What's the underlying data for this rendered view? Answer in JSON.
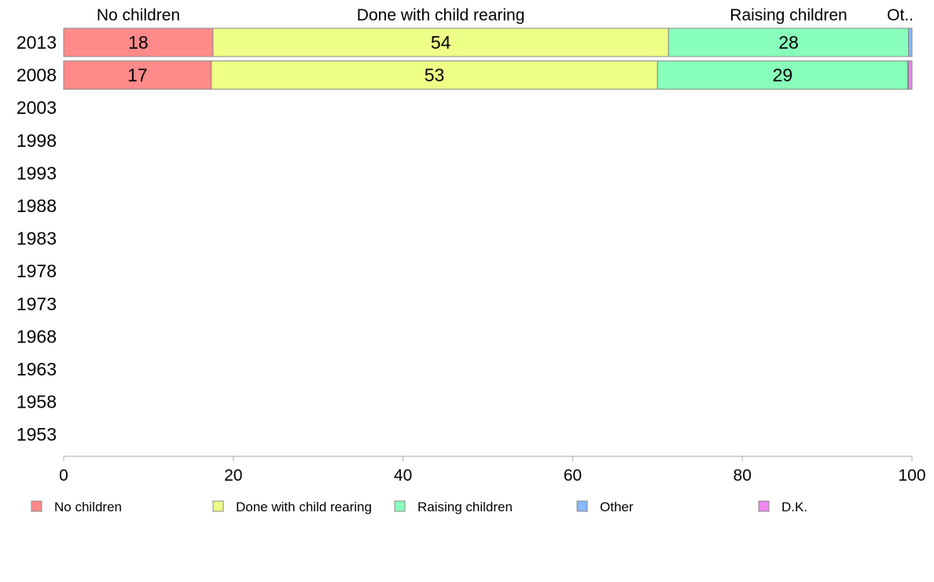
{
  "chart_data": {
    "type": "bar",
    "orientation": "horizontal",
    "stacked": true,
    "categories": [
      "2013",
      "2008",
      "2003",
      "1998",
      "1993",
      "1988",
      "1983",
      "1978",
      "1973",
      "1968",
      "1963",
      "1958",
      "1953"
    ],
    "series": [
      {
        "name": "No children",
        "color": "#ff8a8a",
        "values": [
          17.6,
          17.4,
          null,
          null,
          null,
          null,
          null,
          null,
          null,
          null,
          null,
          null,
          null
        ],
        "labels": [
          "18",
          "17",
          "",
          "",
          "",
          "",
          "",
          "",
          "",
          "",
          "",
          "",
          ""
        ]
      },
      {
        "name": "Done with child rearing",
        "color": "#eeff88",
        "values": [
          53.7,
          52.6,
          null,
          null,
          null,
          null,
          null,
          null,
          null,
          null,
          null,
          null,
          null
        ],
        "labels": [
          "54",
          "53",
          "",
          "",
          "",
          "",
          "",
          "",
          "",
          "",
          "",
          "",
          ""
        ]
      },
      {
        "name": "Raising children",
        "color": "#88ffbb",
        "values": [
          28.3,
          29.5,
          null,
          null,
          null,
          null,
          null,
          null,
          null,
          null,
          null,
          null,
          null
        ],
        "labels": [
          "28",
          "29",
          "",
          "",
          "",
          "",
          "",
          "",
          "",
          "",
          "",
          "",
          ""
        ]
      },
      {
        "name": "Other",
        "color": "#88b8ff",
        "values": [
          0.4,
          0.1,
          null,
          null,
          null,
          null,
          null,
          null,
          null,
          null,
          null,
          null,
          null
        ],
        "labels": [
          "",
          "",
          "",
          "",
          "",
          "",
          "",
          "",
          "",
          "",
          "",
          "",
          ""
        ]
      },
      {
        "name": "D.K.",
        "color": "#ee88ee",
        "values": [
          0.0,
          0.4,
          null,
          null,
          null,
          null,
          null,
          null,
          null,
          null,
          null,
          null,
          null
        ],
        "labels": [
          "",
          "",
          "",
          "",
          "",
          "",
          "",
          "",
          "",
          "",
          "",
          "",
          ""
        ]
      }
    ],
    "top_labels": [
      {
        "text": "No children"
      },
      {
        "text": "Done with child rearing"
      },
      {
        "text": "Raising children"
      },
      {
        "text": "Ot.."
      }
    ],
    "xlim": [
      0,
      100
    ],
    "xticks": [
      "0",
      "20",
      "40",
      "60",
      "80",
      "100"
    ],
    "grid": false,
    "legend_position": "bottom",
    "title": "",
    "xlabel": "",
    "ylabel": ""
  }
}
